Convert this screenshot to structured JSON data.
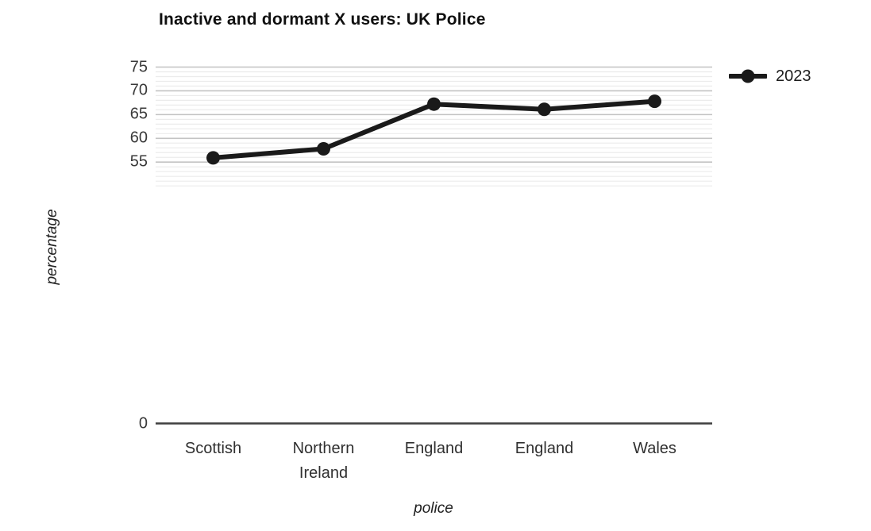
{
  "chart_data": {
    "type": "line",
    "title": "Inactive and dormant X users: UK Police",
    "xlabel": "police",
    "ylabel": "percentage",
    "categories": [
      "Scottish",
      "Northern Ireland",
      "England",
      "England",
      "Wales"
    ],
    "series": [
      {
        "name": "2023",
        "values": [
          55.9,
          57.8,
          67.2,
          66.1,
          67.8
        ]
      }
    ],
    "ylim": [
      0,
      75
    ],
    "y_ticks": [
      75,
      70,
      65,
      60,
      55,
      0
    ],
    "grid": "horizontal minor gridlines every 1 unit from 50 to 75; darker major lines at labeled ticks 55-75; no grid between 0 and 50",
    "legend_position": "top-right outside plot",
    "marker": "circle",
    "colors": {
      "line": "#1a1a1a",
      "marker": "#1a1a1a",
      "grid_minor": "#ebebeb",
      "grid_major": "#c3c3c3",
      "axis_line": "#3f3f3f",
      "tick_text": "#3a3a3a",
      "category_text": "#303030",
      "title_text": "#101010"
    }
  }
}
